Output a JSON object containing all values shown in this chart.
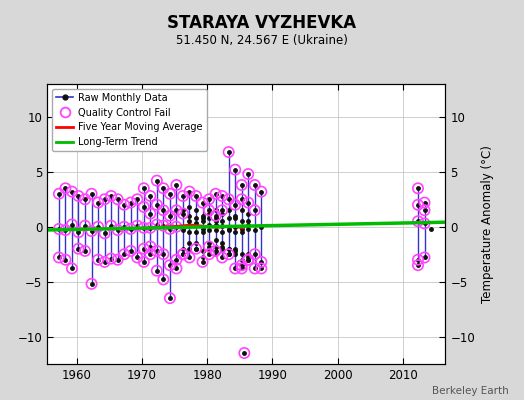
{
  "title": "STARAYA VYZHEVKA",
  "subtitle": "51.450 N, 24.567 E (Ukraine)",
  "ylabel": "Temperature Anomaly (°C)",
  "watermark": "Berkeley Earth",
  "xlim": [
    1955.5,
    2016.5
  ],
  "ylim": [
    -12.5,
    13.0
  ],
  "yticks": [
    -10,
    -5,
    0,
    5,
    10
  ],
  "xticks": [
    1960,
    1970,
    1980,
    1990,
    2000,
    2010
  ],
  "bg_color": "#d8d8d8",
  "plot_bg_color": "#ffffff",
  "raw_color": "#3333cc",
  "raw_dot_color": "#111111",
  "qc_color": "#ff44ff",
  "moving_avg_color": "#ff0000",
  "trend_color": "#00bb00",
  "years_data": {
    "1957": {
      "pts": [
        -0.2,
        3.0,
        -2.8
      ],
      "qc": [
        true,
        true,
        true
      ]
    },
    "1958": {
      "pts": [
        -0.3,
        3.5,
        -3.0
      ],
      "qc": [
        true,
        true,
        true
      ]
    },
    "1959": {
      "pts": [
        0.2,
        3.2,
        -3.8
      ],
      "qc": [
        true,
        true,
        true
      ]
    },
    "1960": {
      "pts": [
        -0.5,
        2.8,
        -2.0
      ],
      "qc": [
        true,
        true,
        true
      ]
    },
    "1961": {
      "pts": [
        0.1,
        2.5,
        -2.2
      ],
      "qc": [
        true,
        true,
        true
      ]
    },
    "1962": {
      "pts": [
        -0.4,
        3.0,
        -5.2
      ],
      "qc": [
        true,
        true,
        true
      ]
    },
    "1963": {
      "pts": [
        0.0,
        2.2,
        -3.0
      ],
      "qc": [
        true,
        true,
        true
      ]
    },
    "1964": {
      "pts": [
        -0.6,
        2.5,
        -3.2
      ],
      "qc": [
        true,
        true,
        true
      ]
    },
    "1965": {
      "pts": [
        0.1,
        2.8,
        -2.9
      ],
      "qc": [
        true,
        true,
        true
      ]
    },
    "1966": {
      "pts": [
        -0.3,
        2.5,
        -3.0
      ],
      "qc": [
        true,
        true,
        true
      ]
    },
    "1967": {
      "pts": [
        0.0,
        2.0,
        -2.5
      ],
      "qc": [
        true,
        true,
        true
      ]
    },
    "1968": {
      "pts": [
        -0.2,
        2.2,
        -2.2
      ],
      "qc": [
        true,
        true,
        true
      ]
    },
    "1969": {
      "pts": [
        0.1,
        2.5,
        -2.8
      ],
      "qc": [
        true,
        true,
        true
      ]
    },
    "1970": {
      "pts": [
        -0.1,
        3.5,
        -3.2,
        1.8,
        -2.0
      ],
      "qc": [
        true,
        true,
        true,
        true,
        true
      ]
    },
    "1971": {
      "pts": [
        -0.1,
        2.8,
        -2.5,
        1.2,
        -1.8
      ],
      "qc": [
        true,
        true,
        true,
        true,
        true
      ]
    },
    "1972": {
      "pts": [
        0.2,
        4.2,
        -4.0,
        2.0,
        -2.2
      ],
      "qc": [
        true,
        true,
        true,
        true,
        true
      ]
    },
    "1973": {
      "pts": [
        0.1,
        3.5,
        -4.8,
        1.5,
        -2.5
      ],
      "qc": [
        true,
        true,
        true,
        true,
        true
      ]
    },
    "1974": {
      "pts": [
        -0.2,
        3.0,
        -6.5,
        1.0,
        -3.5
      ],
      "qc": [
        true,
        true,
        true,
        true,
        true
      ]
    },
    "1975": {
      "pts": [
        0.0,
        3.8,
        -3.8,
        1.5,
        -3.0
      ],
      "qc": [
        true,
        true,
        true,
        true,
        true
      ]
    },
    "1976": {
      "pts": [
        -0.1,
        2.8,
        -2.5,
        1.2,
        -2.5,
        -0.3,
        1.5,
        -2.0
      ],
      "qc": [
        false,
        true,
        true,
        true,
        true,
        false,
        false,
        false
      ]
    },
    "1977": {
      "pts": [
        0.5,
        3.2,
        -2.8,
        1.8,
        -2.0,
        0.2,
        -0.5,
        1.0,
        -1.5
      ],
      "qc": [
        false,
        true,
        true,
        false,
        false,
        false,
        false,
        false,
        false
      ]
    },
    "1978": {
      "pts": [
        0.3,
        2.8,
        -2.0,
        1.5,
        -2.0,
        -0.5,
        0.8,
        -1.5
      ],
      "qc": [
        false,
        true,
        true,
        false,
        false,
        false,
        false,
        false
      ]
    },
    "1979": {
      "pts": [
        -0.5,
        2.2,
        -3.2,
        0.8,
        -2.8,
        -0.2,
        1.0,
        -2.2,
        0.5
      ],
      "qc": [
        false,
        true,
        true,
        false,
        false,
        false,
        false,
        false,
        false
      ]
    },
    "1980": {
      "pts": [
        0.2,
        2.5,
        -2.5,
        1.5,
        -1.8,
        -0.3,
        0.8,
        -1.5,
        1.2,
        -2.0
      ],
      "qc": [
        false,
        true,
        true,
        true,
        true,
        false,
        false,
        false,
        false,
        false
      ]
    },
    "1981": {
      "pts": [
        0.5,
        3.0,
        -2.2,
        1.0,
        -1.2,
        -0.3,
        0.8,
        -1.8,
        1.5,
        -2.5,
        0.2
      ],
      "qc": [
        false,
        true,
        true,
        true,
        false,
        false,
        false,
        false,
        false,
        false,
        false
      ]
    },
    "1982": {
      "pts": [
        0.1,
        2.8,
        -2.8,
        1.5,
        -1.8,
        -0.5,
        1.2,
        -2.0,
        0.5,
        -1.5
      ],
      "qc": [
        false,
        true,
        true,
        true,
        false,
        false,
        false,
        false,
        false,
        false
      ]
    },
    "1983": {
      "pts": [
        -0.2,
        6.8,
        -2.5,
        2.5,
        -2.0,
        -0.3,
        1.5,
        -2.5,
        0.8,
        -2.0
      ],
      "qc": [
        false,
        true,
        true,
        true,
        false,
        false,
        false,
        false,
        false,
        false
      ]
    },
    "1984": {
      "pts": [
        0.0,
        5.2,
        -3.8,
        2.0,
        -2.2,
        -0.5,
        1.0,
        -2.5,
        0.8,
        -2.0
      ],
      "qc": [
        false,
        true,
        true,
        true,
        false,
        false,
        false,
        false,
        false,
        false
      ]
    },
    "1985": {
      "pts": [
        -0.5,
        3.8,
        -3.8,
        2.5,
        -3.5,
        -0.2,
        1.5,
        -3.0,
        0.5,
        -2.5
      ],
      "qc": [
        false,
        true,
        true,
        true,
        true,
        false,
        false,
        false,
        false,
        false
      ]
    },
    "1986": {
      "pts": [
        0.2,
        4.8,
        -3.0,
        2.2,
        -3.0,
        -0.2,
        1.2,
        -2.5,
        0.5,
        -2.8
      ],
      "qc": [
        false,
        true,
        true,
        true,
        true,
        false,
        false,
        false,
        false,
        false
      ]
    },
    "1987": {
      "pts": [
        -0.3,
        3.8,
        -3.8,
        1.5,
        -2.5
      ],
      "qc": [
        false,
        true,
        true,
        true,
        true
      ]
    },
    "1988": {
      "pts": [
        0.0,
        3.2,
        -3.2,
        -3.8
      ],
      "qc": [
        false,
        true,
        true,
        true
      ]
    },
    "1985b": {
      "pts": [
        -11.5
      ],
      "qc": [
        true
      ]
    },
    "2012": {
      "pts": [
        0.5,
        3.5,
        -3.5,
        2.0,
        -3.0
      ],
      "qc": [
        true,
        true,
        true,
        true,
        true
      ]
    },
    "2013": {
      "pts": [
        0.3,
        2.2,
        -2.8,
        1.5
      ],
      "qc": [
        true,
        true,
        true,
        true
      ]
    },
    "2014": {
      "pts": [
        -0.2
      ],
      "qc": [
        false
      ]
    }
  },
  "moving_avg": [
    [
      1970.5,
      -0.15
    ],
    [
      1971.5,
      -0.1
    ],
    [
      1972.5,
      -0.05
    ],
    [
      1973.5,
      0.0
    ],
    [
      1974.5,
      0.0
    ],
    [
      1975.5,
      0.05
    ],
    [
      1976.5,
      0.1
    ],
    [
      1977.5,
      0.15
    ],
    [
      1978.5,
      0.1
    ],
    [
      1979.5,
      0.05
    ],
    [
      1980.5,
      0.0
    ],
    [
      1981.5,
      -0.05
    ],
    [
      1982.5,
      0.0
    ],
    [
      1983.5,
      0.05
    ],
    [
      1984.5,
      0.0
    ],
    [
      1985.5,
      -0.1
    ]
  ],
  "trend_x": [
    1955,
    2017
  ],
  "trend_y": [
    -0.3,
    0.42
  ]
}
